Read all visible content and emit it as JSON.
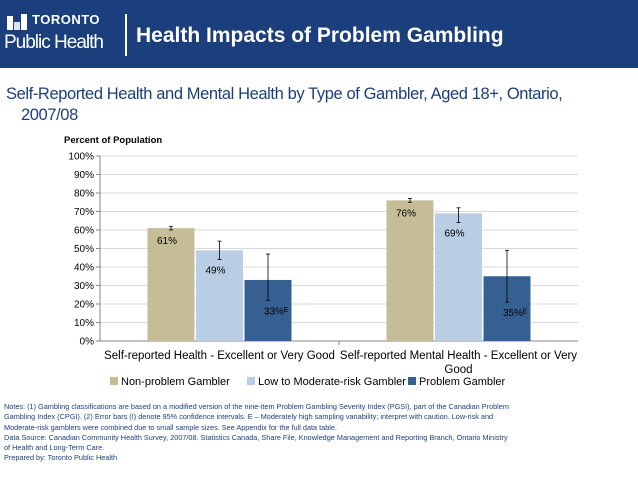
{
  "header": {
    "logo_line1": "TORONTO",
    "logo_line2": "Public Health",
    "title": "Health Impacts of Problem Gambling"
  },
  "subtitle": {
    "line1": "Self-Reported Health and Mental Health by Type of Gambler, Aged 18+, Ontario,",
    "line2": "2007/08"
  },
  "chart_data": {
    "type": "bar",
    "ylabel": "Percent of Population",
    "ylim": [
      0,
      100
    ],
    "yticks": [
      "0%",
      "10%",
      "20%",
      "30%",
      "40%",
      "50%",
      "60%",
      "70%",
      "80%",
      "90%",
      "100%"
    ],
    "categories": [
      "Self-reported Health - Excellent or Very Good",
      "Self-reported Mental Health - Excellent or Very Good"
    ],
    "series": [
      {
        "name": "Non-problem Gambler",
        "color": "#c4bd97",
        "values": [
          61,
          76
        ],
        "labels": [
          "61%",
          "76%"
        ],
        "err_low": [
          60,
          75
        ],
        "err_high": [
          62,
          77
        ]
      },
      {
        "name": "Low to Moderate-risk Gambler",
        "color": "#b9cde5",
        "values": [
          49,
          69
        ],
        "labels": [
          "49%",
          "69%"
        ],
        "err_low": [
          44,
          64
        ],
        "err_high": [
          54,
          72
        ]
      },
      {
        "name": "Problem Gambler",
        "color": "#376092",
        "values": [
          33,
          35
        ],
        "labels": [
          "33%ᴱ",
          "35%ᴱ"
        ],
        "err_low": [
          22,
          21
        ],
        "err_high": [
          47,
          49
        ]
      }
    ]
  },
  "notes": {
    "line1": "Notes: (1) Gambling classifications are based on a modified version of the nine-item Problem Gambling Severity Index (PGSI), part of the Canadian Problem",
    "line2": "Gambling Index (CPGI). (2) Error bars (I) denote 95% confidence intervals. E – Moderately high sampling variability; interpret with caution. Low-risk and",
    "line3": "Moderate-risk gamblers were combined due to small sample sizes. See Appendix for the full data table.",
    "line4": "Data Source: Canadian Community Health Survey, 2007/08. Statistics Canada, Share File, Knowledge Management and Reporting Branch, Ontario Ministry",
    "line5": "of Health and Long-Term Care.",
    "line6": "Prepared by: Toronto Public Health"
  }
}
